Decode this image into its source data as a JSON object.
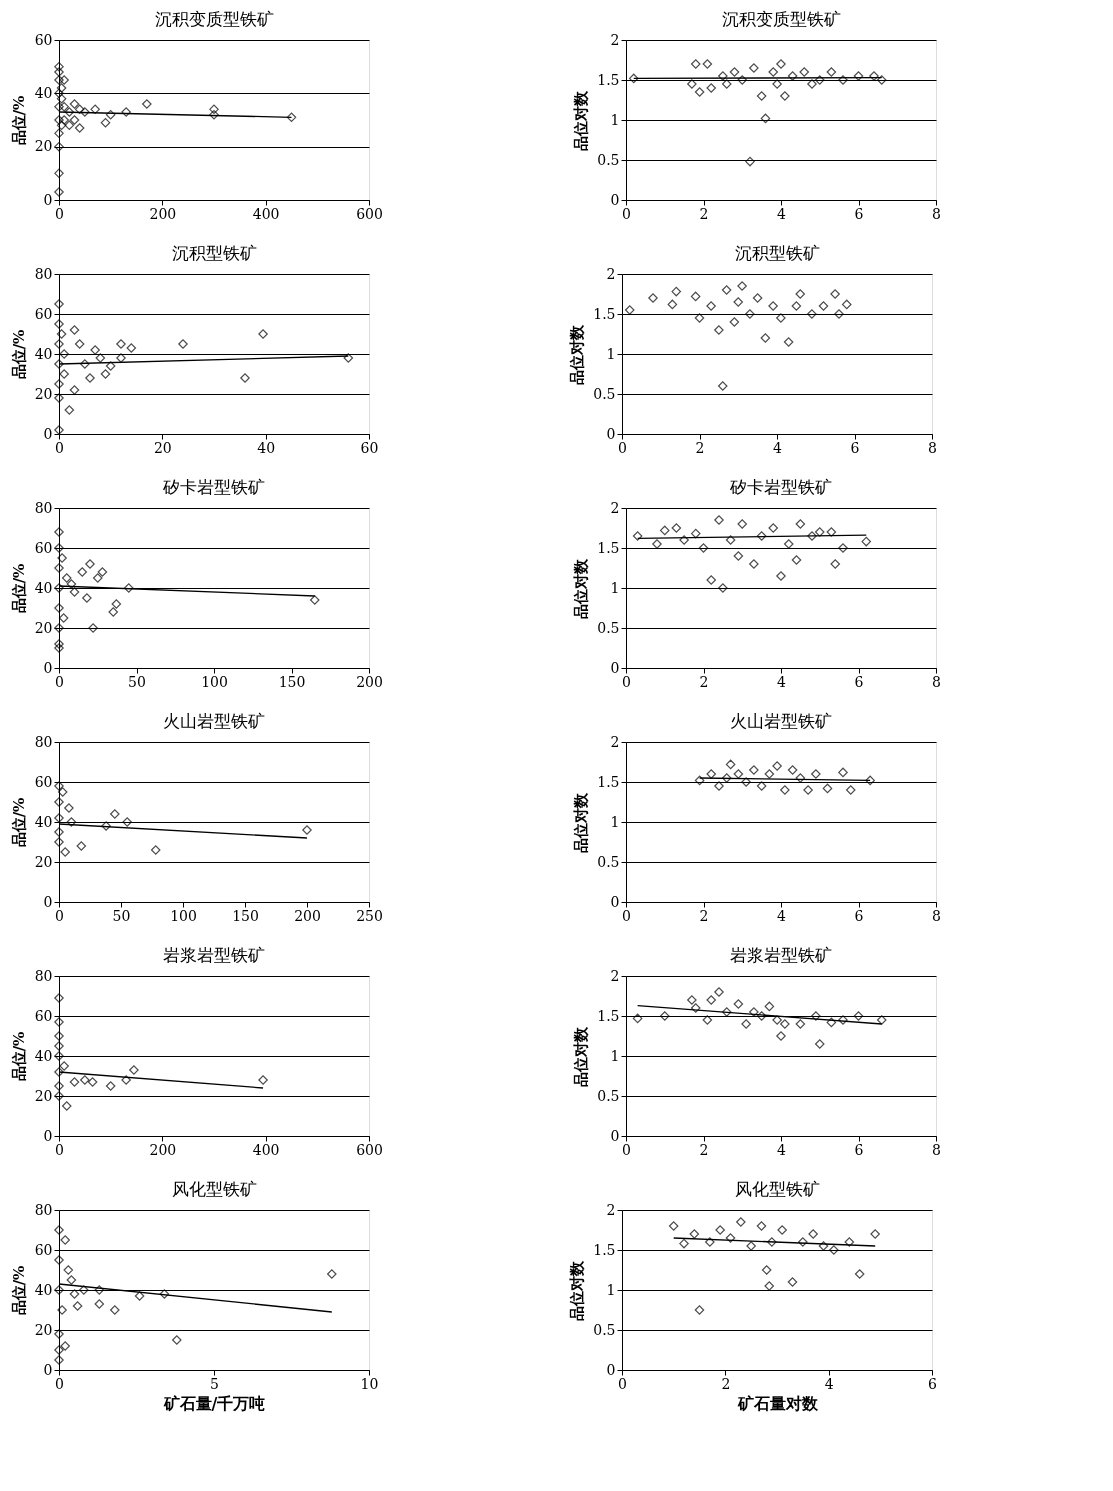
{
  "chart_data": [
    {
      "type": "scatter",
      "title": "沉积变质型铁矿",
      "ylabel": "品位/%",
      "xlim": [
        0,
        600
      ],
      "xticks": [
        0,
        200,
        400,
        600
      ],
      "ylim": [
        0,
        60
      ],
      "yticks": [
        0,
        20,
        40,
        60
      ],
      "grid": "y",
      "marker": "diamond",
      "series": [
        {
          "type": "scatter",
          "color": "#000000",
          "x": [
            0,
            0,
            0,
            0,
            0,
            0,
            0,
            0,
            0,
            0,
            5,
            5,
            5,
            10,
            10,
            10,
            20,
            20,
            30,
            30,
            40,
            40,
            50,
            70,
            90,
            100,
            130,
            170,
            300,
            300,
            450
          ],
          "values": [
            3,
            10,
            20,
            25,
            30,
            35,
            40,
            45,
            50,
            48,
            42,
            38,
            28,
            35,
            30,
            45,
            33,
            28,
            36,
            30,
            27,
            34,
            33,
            34,
            29,
            32,
            33,
            36,
            34,
            32,
            31
          ]
        },
        {
          "type": "line",
          "color": "#000000",
          "marker": "none",
          "x": [
            0,
            450
          ],
          "values": [
            33,
            31
          ]
        }
      ]
    },
    {
      "type": "scatter",
      "title": "沉积变质型铁矿",
      "ylabel": "品位对数",
      "xlim": [
        0,
        8
      ],
      "xticks": [
        0,
        2,
        4,
        6,
        8
      ],
      "ylim": [
        0,
        2
      ],
      "yticks": [
        0,
        0.5,
        1,
        1.5,
        2
      ],
      "grid": "y",
      "marker": "diamond",
      "series": [
        {
          "type": "scatter",
          "color": "#000000",
          "x": [
            0.2,
            1.7,
            1.8,
            1.9,
            2.1,
            2.2,
            2.5,
            2.6,
            2.8,
            3,
            3.2,
            3.3,
            3.5,
            3.6,
            3.8,
            3.9,
            4,
            4.1,
            4.3,
            4.6,
            4.8,
            5,
            5.3,
            5.6,
            6,
            6.4,
            6.6
          ],
          "values": [
            1.52,
            1.45,
            1.7,
            1.35,
            1.7,
            1.4,
            1.55,
            1.45,
            1.6,
            1.5,
            0.48,
            1.65,
            1.3,
            1.02,
            1.6,
            1.45,
            1.7,
            1.3,
            1.55,
            1.6,
            1.45,
            1.5,
            1.6,
            1.5,
            1.55,
            1.55,
            1.5
          ]
        },
        {
          "type": "line",
          "color": "#000000",
          "marker": "none",
          "x": [
            0.2,
            6.6
          ],
          "values": [
            1.52,
            1.53
          ]
        }
      ]
    },
    {
      "type": "scatter",
      "title": "沉积型铁矿",
      "ylabel": "品位/%",
      "xlim": [
        0,
        60
      ],
      "xticks": [
        0,
        20,
        40,
        60
      ],
      "ylim": [
        0,
        80
      ],
      "yticks": [
        0,
        20,
        40,
        60,
        80
      ],
      "grid": "y",
      "marker": "diamond",
      "series": [
        {
          "type": "scatter",
          "color": "#000000",
          "x": [
            0,
            0,
            0,
            0,
            0,
            0,
            0,
            0.5,
            1,
            1,
            2,
            3,
            3,
            4,
            5,
            6,
            7,
            8,
            9,
            10,
            12,
            12,
            14,
            24,
            36,
            39.5,
            56
          ],
          "values": [
            2,
            65,
            55,
            45,
            35,
            25,
            18,
            50,
            40,
            30,
            12,
            52,
            22,
            45,
            35,
            28,
            42,
            38,
            30,
            34,
            45,
            38,
            43,
            45,
            28,
            50,
            38
          ]
        },
        {
          "type": "line",
          "color": "#000000",
          "marker": "none",
          "x": [
            0,
            56
          ],
          "values": [
            35,
            39
          ]
        }
      ]
    },
    {
      "type": "scatter",
      "title": "沉积型铁矿",
      "ylabel": "品位对数",
      "xlim": [
        0,
        8
      ],
      "xticks": [
        0,
        2,
        4,
        6,
        8
      ],
      "ylim": [
        0,
        2
      ],
      "yticks": [
        0,
        0.5,
        1,
        1.5,
        2
      ],
      "grid": "y",
      "marker": "diamond",
      "series": [
        {
          "type": "scatter",
          "color": "#000000",
          "x": [
            0.2,
            0.8,
            1.3,
            1.4,
            1.9,
            2,
            2.3,
            2.5,
            2.6,
            2.7,
            2.9,
            3,
            3.1,
            3.3,
            3.5,
            3.7,
            3.9,
            4.1,
            4.3,
            4.5,
            4.6,
            4.9,
            5.2,
            5.5,
            5.6,
            5.8
          ],
          "values": [
            1.55,
            1.7,
            1.62,
            1.78,
            1.72,
            1.45,
            1.6,
            1.3,
            0.6,
            1.8,
            1.4,
            1.65,
            1.85,
            1.5,
            1.7,
            1.2,
            1.6,
            1.45,
            1.15,
            1.6,
            1.75,
            1.5,
            1.6,
            1.75,
            1.5,
            1.62
          ]
        }
      ]
    },
    {
      "type": "scatter",
      "title": "矽卡岩型铁矿",
      "ylabel": "品位/%",
      "xlim": [
        0,
        200
      ],
      "xticks": [
        0,
        50,
        100,
        150,
        200
      ],
      "ylim": [
        0,
        80
      ],
      "yticks": [
        0,
        20,
        40,
        60,
        80
      ],
      "grid": "y",
      "marker": "diamond",
      "series": [
        {
          "type": "scatter",
          "color": "#000000",
          "x": [
            0,
            0,
            0,
            0,
            0,
            0,
            0,
            0,
            2,
            3,
            5,
            8,
            10,
            15,
            18,
            20,
            22,
            25,
            28,
            35,
            37,
            45,
            165
          ],
          "values": [
            68,
            60,
            50,
            40,
            30,
            20,
            12,
            10,
            55,
            25,
            45,
            42,
            38,
            48,
            35,
            52,
            20,
            45,
            48,
            28,
            32,
            40,
            34
          ]
        },
        {
          "type": "line",
          "color": "#000000",
          "marker": "none",
          "x": [
            0,
            165
          ],
          "values": [
            41,
            36
          ]
        }
      ]
    },
    {
      "type": "scatter",
      "title": "矽卡岩型铁矿",
      "ylabel": "品位对数",
      "xlim": [
        0,
        8
      ],
      "xticks": [
        0,
        2,
        4,
        6,
        8
      ],
      "ylim": [
        0,
        2
      ],
      "yticks": [
        0,
        0.5,
        1,
        1.5,
        2
      ],
      "grid": "y",
      "marker": "diamond",
      "series": [
        {
          "type": "scatter",
          "color": "#000000",
          "x": [
            0.3,
            0.8,
            1,
            1.3,
            1.5,
            1.8,
            2,
            2.2,
            2.4,
            2.5,
            2.7,
            2.9,
            3,
            3.3,
            3.5,
            3.8,
            4,
            4.2,
            4.4,
            4.5,
            4.8,
            5,
            5.3,
            5.4,
            5.6,
            6.2
          ],
          "values": [
            1.65,
            1.55,
            1.72,
            1.75,
            1.6,
            1.68,
            1.5,
            1.1,
            1.85,
            1.0,
            1.6,
            1.4,
            1.8,
            1.3,
            1.65,
            1.75,
            1.15,
            1.55,
            1.35,
            1.8,
            1.65,
            1.7,
            1.7,
            1.3,
            1.5,
            1.58
          ]
        },
        {
          "type": "line",
          "color": "#000000",
          "marker": "none",
          "x": [
            0.3,
            6.2
          ],
          "values": [
            1.62,
            1.66
          ]
        }
      ]
    },
    {
      "type": "scatter",
      "title": "火山岩型铁矿",
      "ylabel": "品位/%",
      "xlim": [
        0,
        250
      ],
      "xticks": [
        0,
        50,
        100,
        150,
        200,
        250
      ],
      "ylim": [
        0,
        80
      ],
      "yticks": [
        0,
        20,
        40,
        60,
        80
      ],
      "grid": "y",
      "marker": "diamond",
      "series": [
        {
          "type": "scatter",
          "color": "#000000",
          "x": [
            0,
            0,
            0,
            0,
            0,
            3,
            5,
            8,
            10,
            18,
            38,
            45,
            55,
            78,
            200
          ],
          "values": [
            58,
            50,
            42,
            35,
            30,
            55,
            25,
            47,
            40,
            28,
            38,
            44,
            40,
            26,
            36
          ]
        },
        {
          "type": "line",
          "color": "#000000",
          "marker": "none",
          "x": [
            0,
            200
          ],
          "values": [
            39,
            32
          ]
        }
      ]
    },
    {
      "type": "scatter",
      "title": "火山岩型铁矿",
      "ylabel": "品位对数",
      "xlim": [
        0,
        8
      ],
      "xticks": [
        0,
        2,
        4,
        6,
        8
      ],
      "ylim": [
        0,
        2
      ],
      "yticks": [
        0,
        0.5,
        1,
        1.5,
        2
      ],
      "grid": "y",
      "marker": "diamond",
      "series": [
        {
          "type": "scatter",
          "color": "#000000",
          "x": [
            1.9,
            2.2,
            2.4,
            2.6,
            2.7,
            2.9,
            3.1,
            3.3,
            3.5,
            3.7,
            3.9,
            4.1,
            4.3,
            4.5,
            4.7,
            4.9,
            5.2,
            5.6,
            5.8,
            6.3
          ],
          "values": [
            1.52,
            1.6,
            1.45,
            1.55,
            1.72,
            1.6,
            1.5,
            1.65,
            1.45,
            1.6,
            1.7,
            1.4,
            1.65,
            1.55,
            1.4,
            1.6,
            1.42,
            1.62,
            1.4,
            1.52
          ]
        },
        {
          "type": "line",
          "color": "#000000",
          "marker": "none",
          "x": [
            1.9,
            6.3
          ],
          "values": [
            1.55,
            1.52
          ]
        }
      ]
    },
    {
      "type": "scatter",
      "title": "岩浆岩型铁矿",
      "ylabel": "品位/%",
      "xlim": [
        0,
        600
      ],
      "xticks": [
        0,
        200,
        400,
        600
      ],
      "ylim": [
        0,
        80
      ],
      "yticks": [
        0,
        20,
        40,
        60,
        80
      ],
      "grid": "y",
      "marker": "diamond",
      "series": [
        {
          "type": "scatter",
          "color": "#000000",
          "x": [
            0,
            0,
            0,
            0,
            0,
            0,
            0,
            0,
            10,
            15,
            30,
            50,
            65,
            100,
            130,
            145,
            395
          ],
          "values": [
            69,
            57,
            50,
            45,
            40,
            32,
            25,
            20,
            35,
            15,
            27,
            28,
            27,
            25,
            28,
            33,
            28
          ]
        },
        {
          "type": "line",
          "color": "#000000",
          "marker": "none",
          "x": [
            0,
            395
          ],
          "values": [
            32,
            24
          ]
        }
      ]
    },
    {
      "type": "scatter",
      "title": "岩浆岩型铁矿",
      "ylabel": "品位对数",
      "xlim": [
        0,
        8
      ],
      "xticks": [
        0,
        2,
        4,
        6,
        8
      ],
      "ylim": [
        0,
        2
      ],
      "yticks": [
        0,
        0.5,
        1,
        1.5,
        2
      ],
      "grid": "y",
      "marker": "diamond",
      "series": [
        {
          "type": "scatter",
          "color": "#000000",
          "x": [
            0.3,
            1,
            1.7,
            1.8,
            2.1,
            2.2,
            2.4,
            2.6,
            2.9,
            3.1,
            3.3,
            3.5,
            3.7,
            3.9,
            4,
            4.1,
            4.5,
            4.9,
            5,
            5.3,
            5.6,
            6,
            6.6
          ],
          "values": [
            1.47,
            1.5,
            1.7,
            1.6,
            1.45,
            1.7,
            1.8,
            1.55,
            1.65,
            1.4,
            1.55,
            1.5,
            1.62,
            1.45,
            1.25,
            1.4,
            1.4,
            1.5,
            1.15,
            1.42,
            1.45,
            1.5,
            1.45
          ]
        },
        {
          "type": "line",
          "color": "#000000",
          "marker": "none",
          "x": [
            0.3,
            6.6
          ],
          "values": [
            1.63,
            1.4
          ]
        }
      ]
    },
    {
      "type": "scatter",
      "title": "风化型铁矿",
      "xlabel": "矿石量/千万吨",
      "ylabel": "品位/%",
      "xlim": [
        0,
        10
      ],
      "xticks": [
        0,
        5,
        10
      ],
      "ylim": [
        0,
        80
      ],
      "yticks": [
        0,
        20,
        40,
        60,
        80
      ],
      "grid": "y",
      "marker": "diamond",
      "series": [
        {
          "type": "scatter",
          "color": "#000000",
          "x": [
            0,
            0,
            0,
            0,
            0,
            0,
            0.1,
            0.2,
            0.2,
            0.3,
            0.4,
            0.5,
            0.6,
            0.8,
            1.3,
            1.3,
            1.8,
            2.6,
            3.4,
            3.8,
            8.8
          ],
          "values": [
            5,
            10,
            18,
            40,
            55,
            70,
            30,
            12,
            65,
            50,
            45,
            38,
            32,
            40,
            40,
            33,
            30,
            37,
            38,
            15,
            48
          ]
        },
        {
          "type": "line",
          "color": "#000000",
          "marker": "none",
          "x": [
            0,
            8.8
          ],
          "values": [
            43,
            29
          ]
        }
      ]
    },
    {
      "type": "scatter",
      "title": "风化型铁矿",
      "xlabel": "矿石量对数",
      "ylabel": "品位对数",
      "xlim": [
        0,
        6
      ],
      "xticks": [
        0,
        2,
        4,
        6
      ],
      "ylim": [
        0,
        2
      ],
      "yticks": [
        0,
        0.5,
        1,
        1.5,
        2
      ],
      "grid": "y",
      "marker": "diamond",
      "series": [
        {
          "type": "scatter",
          "color": "#000000",
          "x": [
            1,
            1.2,
            1.4,
            1.5,
            1.7,
            1.9,
            2.1,
            2.3,
            2.5,
            2.7,
            2.8,
            2.85,
            2.9,
            3.1,
            3.3,
            3.5,
            3.7,
            3.9,
            4.1,
            4.4,
            4.6,
            4.9
          ],
          "values": [
            1.8,
            1.58,
            1.7,
            0.75,
            1.6,
            1.75,
            1.65,
            1.85,
            1.55,
            1.8,
            1.25,
            1.05,
            1.6,
            1.75,
            1.1,
            1.6,
            1.7,
            1.55,
            1.5,
            1.6,
            1.2,
            1.7
          ]
        },
        {
          "type": "line",
          "color": "#000000",
          "marker": "none",
          "x": [
            1,
            4.9
          ],
          "values": [
            1.65,
            1.55
          ]
        }
      ]
    }
  ]
}
